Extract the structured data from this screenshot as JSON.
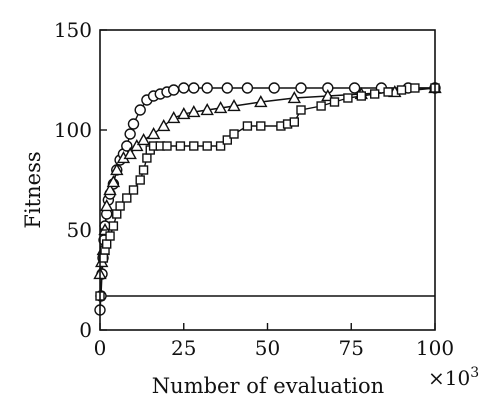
{
  "chart_data": {
    "type": "line",
    "xlabel": "Number of evaluation",
    "ylabel": "Fitness",
    "xmultiplier_label": "×10",
    "xmultiplier_exp": "3",
    "xlim": [
      0,
      100
    ],
    "ylim": [
      0,
      150
    ],
    "xticks": [
      0,
      25,
      50,
      75,
      100
    ],
    "yticks": [
      0,
      50,
      100,
      150
    ],
    "grid": false,
    "legend": "none",
    "series": [
      {
        "marker": "circle",
        "x": [
          0,
          0.3,
          0.6,
          0.9,
          1.2,
          1.5,
          2,
          2.5,
          3,
          4,
          5,
          6,
          7,
          8,
          9,
          10,
          12,
          14,
          16,
          18,
          20,
          22,
          25,
          28,
          32,
          38,
          44,
          52,
          60,
          68,
          76,
          84,
          92,
          100
        ],
        "y": [
          10,
          17,
          28,
          36,
          45,
          52,
          58,
          65,
          68,
          73,
          80,
          85,
          88,
          92,
          98,
          103,
          110,
          115,
          117,
          118,
          119,
          120,
          121,
          121,
          121,
          121,
          121,
          121,
          121,
          121,
          121,
          121,
          121,
          121
        ]
      },
      {
        "marker": "triangle",
        "x": [
          0,
          0.5,
          1,
          1.5,
          2,
          3,
          4,
          5,
          7,
          9,
          11,
          13,
          16,
          19,
          22,
          25,
          28,
          32,
          36,
          40,
          48,
          58,
          68,
          78,
          88,
          100
        ],
        "y": [
          28,
          34,
          40,
          50,
          62,
          70,
          74,
          80,
          86,
          88,
          92,
          95,
          98,
          102,
          106,
          108,
          109,
          110,
          111,
          112,
          114,
          116,
          117,
          118,
          119,
          121
        ]
      },
      {
        "marker": "square",
        "x": [
          0,
          1,
          1.5,
          2,
          3,
          4,
          5,
          6,
          8,
          10,
          12,
          13,
          14,
          15,
          16,
          18,
          20,
          24,
          28,
          32,
          36,
          38,
          40,
          44,
          48,
          54,
          56,
          58,
          60,
          66,
          70,
          74,
          78,
          82,
          86,
          90,
          94,
          100
        ],
        "y": [
          17,
          36,
          40,
          43,
          47,
          52,
          58,
          62,
          66,
          70,
          75,
          80,
          86,
          90,
          92,
          92,
          92,
          92,
          92,
          92,
          92,
          95,
          98,
          102,
          102,
          102,
          103,
          104,
          110,
          112,
          114,
          116,
          117,
          118,
          119,
          120,
          121,
          121
        ]
      }
    ],
    "reference_lines": [
      {
        "y": 17,
        "x_from": 0,
        "x_to": 100
      }
    ]
  }
}
